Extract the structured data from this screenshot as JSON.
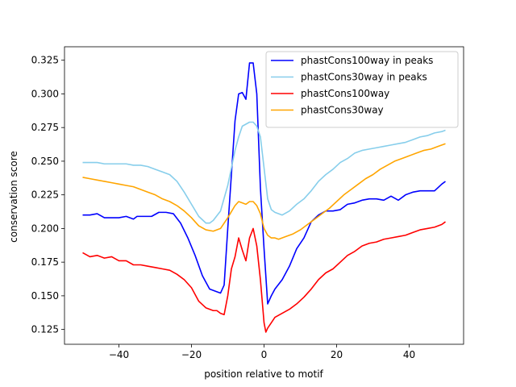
{
  "chart_data": {
    "type": "line",
    "title": "",
    "xlabel": "position relative to motif",
    "ylabel": "conservation score",
    "xlim": [
      -55,
      55
    ],
    "ylim": [
      0.114,
      0.335
    ],
    "x_ticks": [
      -40,
      -20,
      0,
      20,
      40
    ],
    "x_tick_labels": [
      "−40",
      "−20",
      "0",
      "20",
      "40"
    ],
    "y_ticks": [
      0.125,
      0.15,
      0.175,
      0.2,
      0.225,
      0.25,
      0.275,
      0.3,
      0.325
    ],
    "y_tick_labels": [
      "0.125",
      "0.150",
      "0.175",
      "0.200",
      "0.225",
      "0.250",
      "0.275",
      "0.300",
      "0.325"
    ],
    "grid": false,
    "legend_position": "top-right",
    "series": [
      {
        "name": "phastCons100way in peaks",
        "color": "#0000ff",
        "points": [
          [
            -50,
            0.21
          ],
          [
            -48,
            0.21
          ],
          [
            -46,
            0.211
          ],
          [
            -44,
            0.208
          ],
          [
            -42,
            0.208
          ],
          [
            -40,
            0.208
          ],
          [
            -38,
            0.209
          ],
          [
            -36,
            0.207
          ],
          [
            -35,
            0.209
          ],
          [
            -33,
            0.209
          ],
          [
            -31,
            0.209
          ],
          [
            -29,
            0.212
          ],
          [
            -27,
            0.212
          ],
          [
            -25,
            0.211
          ],
          [
            -23,
            0.204
          ],
          [
            -21,
            0.193
          ],
          [
            -19,
            0.18
          ],
          [
            -17,
            0.165
          ],
          [
            -15,
            0.155
          ],
          [
            -13,
            0.153
          ],
          [
            -12,
            0.152
          ],
          [
            -11,
            0.158
          ],
          [
            -10,
            0.2
          ],
          [
            -9,
            0.24
          ],
          [
            -8,
            0.28
          ],
          [
            -7,
            0.3
          ],
          [
            -6,
            0.301
          ],
          [
            -5,
            0.296
          ],
          [
            -4,
            0.323
          ],
          [
            -3,
            0.323
          ],
          [
            -2,
            0.3
          ],
          [
            -1,
            0.23
          ],
          [
            0,
            0.185
          ],
          [
            1,
            0.144
          ],
          [
            2,
            0.15
          ],
          [
            3,
            0.155
          ],
          [
            5,
            0.162
          ],
          [
            7,
            0.172
          ],
          [
            9,
            0.185
          ],
          [
            11,
            0.193
          ],
          [
            13,
            0.205
          ],
          [
            15,
            0.21
          ],
          [
            17,
            0.213
          ],
          [
            19,
            0.213
          ],
          [
            21,
            0.214
          ],
          [
            23,
            0.218
          ],
          [
            25,
            0.219
          ],
          [
            27,
            0.221
          ],
          [
            29,
            0.222
          ],
          [
            31,
            0.222
          ],
          [
            33,
            0.221
          ],
          [
            35,
            0.224
          ],
          [
            37,
            0.221
          ],
          [
            39,
            0.225
          ],
          [
            41,
            0.227
          ],
          [
            43,
            0.228
          ],
          [
            45,
            0.228
          ],
          [
            47,
            0.228
          ],
          [
            49,
            0.233
          ],
          [
            50,
            0.235
          ]
        ]
      },
      {
        "name": "phastCons30way in peaks",
        "color": "#87ceeb",
        "points": [
          [
            -50,
            0.249
          ],
          [
            -48,
            0.249
          ],
          [
            -46,
            0.249
          ],
          [
            -44,
            0.248
          ],
          [
            -42,
            0.248
          ],
          [
            -40,
            0.248
          ],
          [
            -38,
            0.248
          ],
          [
            -36,
            0.247
          ],
          [
            -34,
            0.247
          ],
          [
            -32,
            0.246
          ],
          [
            -30,
            0.244
          ],
          [
            -28,
            0.242
          ],
          [
            -26,
            0.24
          ],
          [
            -24,
            0.235
          ],
          [
            -22,
            0.227
          ],
          [
            -20,
            0.218
          ],
          [
            -18,
            0.209
          ],
          [
            -16,
            0.204
          ],
          [
            -15,
            0.204
          ],
          [
            -14,
            0.206
          ],
          [
            -12,
            0.213
          ],
          [
            -10,
            0.232
          ],
          [
            -9,
            0.245
          ],
          [
            -8,
            0.258
          ],
          [
            -7,
            0.268
          ],
          [
            -6,
            0.276
          ],
          [
            -4,
            0.279
          ],
          [
            -3,
            0.279
          ],
          [
            -2,
            0.276
          ],
          [
            -1,
            0.268
          ],
          [
            0,
            0.245
          ],
          [
            1,
            0.222
          ],
          [
            2,
            0.214
          ],
          [
            3,
            0.212
          ],
          [
            5,
            0.21
          ],
          [
            7,
            0.213
          ],
          [
            9,
            0.218
          ],
          [
            11,
            0.222
          ],
          [
            13,
            0.228
          ],
          [
            15,
            0.235
          ],
          [
            17,
            0.24
          ],
          [
            19,
            0.244
          ],
          [
            21,
            0.249
          ],
          [
            23,
            0.252
          ],
          [
            25,
            0.256
          ],
          [
            27,
            0.258
          ],
          [
            29,
            0.259
          ],
          [
            31,
            0.26
          ],
          [
            33,
            0.261
          ],
          [
            35,
            0.262
          ],
          [
            37,
            0.263
          ],
          [
            39,
            0.264
          ],
          [
            41,
            0.266
          ],
          [
            43,
            0.268
          ],
          [
            45,
            0.269
          ],
          [
            47,
            0.271
          ],
          [
            49,
            0.272
          ],
          [
            50,
            0.273
          ]
        ]
      },
      {
        "name": "phastCons100way",
        "color": "#ff0000",
        "points": [
          [
            -50,
            0.182
          ],
          [
            -48,
            0.179
          ],
          [
            -46,
            0.18
          ],
          [
            -44,
            0.178
          ],
          [
            -42,
            0.179
          ],
          [
            -40,
            0.176
          ],
          [
            -38,
            0.176
          ],
          [
            -36,
            0.173
          ],
          [
            -34,
            0.173
          ],
          [
            -32,
            0.172
          ],
          [
            -30,
            0.171
          ],
          [
            -28,
            0.17
          ],
          [
            -26,
            0.169
          ],
          [
            -24,
            0.166
          ],
          [
            -22,
            0.162
          ],
          [
            -20,
            0.156
          ],
          [
            -18,
            0.146
          ],
          [
            -16,
            0.141
          ],
          [
            -14,
            0.139
          ],
          [
            -13,
            0.139
          ],
          [
            -12,
            0.137
          ],
          [
            -11,
            0.136
          ],
          [
            -10,
            0.15
          ],
          [
            -9,
            0.17
          ],
          [
            -8,
            0.179
          ],
          [
            -7,
            0.193
          ],
          [
            -6,
            0.184
          ],
          [
            -5,
            0.176
          ],
          [
            -4,
            0.193
          ],
          [
            -3,
            0.2
          ],
          [
            -2,
            0.187
          ],
          [
            -1,
            0.162
          ],
          [
            0,
            0.13
          ],
          [
            0.5,
            0.123
          ],
          [
            1,
            0.126
          ],
          [
            2,
            0.13
          ],
          [
            3,
            0.134
          ],
          [
            5,
            0.137
          ],
          [
            7,
            0.14
          ],
          [
            9,
            0.144
          ],
          [
            11,
            0.149
          ],
          [
            13,
            0.155
          ],
          [
            15,
            0.162
          ],
          [
            17,
            0.167
          ],
          [
            19,
            0.17
          ],
          [
            21,
            0.175
          ],
          [
            23,
            0.18
          ],
          [
            25,
            0.183
          ],
          [
            27,
            0.187
          ],
          [
            29,
            0.189
          ],
          [
            31,
            0.19
          ],
          [
            33,
            0.192
          ],
          [
            35,
            0.193
          ],
          [
            37,
            0.194
          ],
          [
            39,
            0.195
          ],
          [
            41,
            0.197
          ],
          [
            43,
            0.199
          ],
          [
            45,
            0.2
          ],
          [
            47,
            0.201
          ],
          [
            49,
            0.203
          ],
          [
            50,
            0.205
          ]
        ]
      },
      {
        "name": "phastCons30way",
        "color": "#ffa500",
        "points": [
          [
            -50,
            0.238
          ],
          [
            -48,
            0.237
          ],
          [
            -46,
            0.236
          ],
          [
            -44,
            0.235
          ],
          [
            -42,
            0.234
          ],
          [
            -40,
            0.233
          ],
          [
            -38,
            0.232
          ],
          [
            -36,
            0.231
          ],
          [
            -34,
            0.229
          ],
          [
            -32,
            0.227
          ],
          [
            -30,
            0.225
          ],
          [
            -28,
            0.222
          ],
          [
            -26,
            0.22
          ],
          [
            -24,
            0.217
          ],
          [
            -22,
            0.213
          ],
          [
            -20,
            0.208
          ],
          [
            -18,
            0.202
          ],
          [
            -16,
            0.199
          ],
          [
            -14,
            0.198
          ],
          [
            -12,
            0.2
          ],
          [
            -10,
            0.208
          ],
          [
            -8,
            0.217
          ],
          [
            -7,
            0.22
          ],
          [
            -6,
            0.219
          ],
          [
            -5,
            0.218
          ],
          [
            -4,
            0.22
          ],
          [
            -3,
            0.22
          ],
          [
            -2,
            0.217
          ],
          [
            -1,
            0.211
          ],
          [
            0,
            0.2
          ],
          [
            1,
            0.195
          ],
          [
            2,
            0.193
          ],
          [
            3,
            0.193
          ],
          [
            4,
            0.192
          ],
          [
            6,
            0.194
          ],
          [
            8,
            0.196
          ],
          [
            10,
            0.199
          ],
          [
            12,
            0.203
          ],
          [
            14,
            0.207
          ],
          [
            16,
            0.211
          ],
          [
            18,
            0.215
          ],
          [
            20,
            0.22
          ],
          [
            22,
            0.225
          ],
          [
            24,
            0.229
          ],
          [
            26,
            0.233
          ],
          [
            28,
            0.237
          ],
          [
            30,
            0.24
          ],
          [
            32,
            0.244
          ],
          [
            34,
            0.247
          ],
          [
            36,
            0.25
          ],
          [
            38,
            0.252
          ],
          [
            40,
            0.254
          ],
          [
            42,
            0.256
          ],
          [
            44,
            0.258
          ],
          [
            46,
            0.259
          ],
          [
            48,
            0.261
          ],
          [
            50,
            0.263
          ]
        ]
      }
    ]
  }
}
